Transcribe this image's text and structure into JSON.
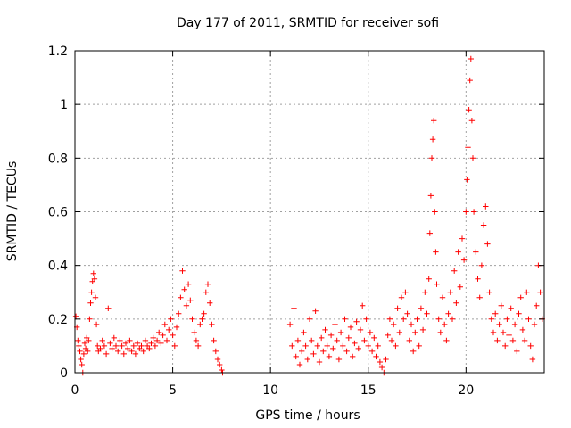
{
  "chart_data": {
    "type": "scatter",
    "title": "Day 177 of 2011, SRMTID for receiver sofi",
    "xlabel": "GPS time / hours",
    "ylabel": "SRMTID / TECUs",
    "xlim": [
      0,
      24
    ],
    "ylim": [
      0,
      1.2
    ],
    "xticks": [
      0,
      5,
      10,
      15,
      20
    ],
    "xtick_labels": [
      "0",
      "5",
      "10",
      "15",
      "20"
    ],
    "yticks": [
      0,
      0.2,
      0.4,
      0.6,
      0.8,
      1,
      1.2
    ],
    "ytick_labels": [
      "0",
      "0.2",
      "0.4",
      "0.6",
      "0.8",
      "1",
      "1.2"
    ],
    "grid": true,
    "marker": "+",
    "color": "#ff0000",
    "series": [
      {
        "name": "SRMTID",
        "points": [
          [
            0.05,
            0.21
          ],
          [
            0.1,
            0.17
          ],
          [
            0.15,
            0.12
          ],
          [
            0.2,
            0.1
          ],
          [
            0.25,
            0.08
          ],
          [
            0.3,
            0.05
          ],
          [
            0.35,
            0.03
          ],
          [
            0.4,
            0.0
          ],
          [
            0.45,
            0.07
          ],
          [
            0.5,
            0.11
          ],
          [
            0.55,
            0.09
          ],
          [
            0.6,
            0.13
          ],
          [
            0.65,
            0.08
          ],
          [
            0.7,
            0.12
          ],
          [
            0.75,
            0.2
          ],
          [
            0.8,
            0.26
          ],
          [
            0.85,
            0.3
          ],
          [
            0.9,
            0.34
          ],
          [
            0.95,
            0.37
          ],
          [
            1.0,
            0.35
          ],
          [
            1.05,
            0.28
          ],
          [
            1.1,
            0.18
          ],
          [
            1.15,
            0.1
          ],
          [
            1.2,
            0.08
          ],
          [
            1.3,
            0.09
          ],
          [
            1.4,
            0.12
          ],
          [
            1.5,
            0.1
          ],
          [
            1.6,
            0.07
          ],
          [
            1.7,
            0.24
          ],
          [
            1.8,
            0.11
          ],
          [
            1.9,
            0.09
          ],
          [
            2.0,
            0.13
          ],
          [
            2.1,
            0.1
          ],
          [
            2.2,
            0.08
          ],
          [
            2.3,
            0.12
          ],
          [
            2.4,
            0.1
          ],
          [
            2.5,
            0.07
          ],
          [
            2.6,
            0.11
          ],
          [
            2.7,
            0.09
          ],
          [
            2.8,
            0.12
          ],
          [
            2.9,
            0.08
          ],
          [
            3.0,
            0.1
          ],
          [
            3.1,
            0.07
          ],
          [
            3.2,
            0.11
          ],
          [
            3.3,
            0.09
          ],
          [
            3.4,
            0.1
          ],
          [
            3.5,
            0.08
          ],
          [
            3.6,
            0.12
          ],
          [
            3.7,
            0.1
          ],
          [
            3.8,
            0.09
          ],
          [
            3.9,
            0.11
          ],
          [
            4.0,
            0.13
          ],
          [
            4.1,
            0.1
          ],
          [
            4.2,
            0.12
          ],
          [
            4.3,
            0.15
          ],
          [
            4.4,
            0.11
          ],
          [
            4.5,
            0.14
          ],
          [
            4.6,
            0.18
          ],
          [
            4.7,
            0.12
          ],
          [
            4.8,
            0.16
          ],
          [
            4.9,
            0.2
          ],
          [
            5.0,
            0.14
          ],
          [
            5.1,
            0.1
          ],
          [
            5.2,
            0.17
          ],
          [
            5.3,
            0.22
          ],
          [
            5.4,
            0.28
          ],
          [
            5.5,
            0.38
          ],
          [
            5.6,
            0.31
          ],
          [
            5.7,
            0.25
          ],
          [
            5.8,
            0.33
          ],
          [
            5.9,
            0.27
          ],
          [
            6.0,
            0.2
          ],
          [
            6.1,
            0.15
          ],
          [
            6.2,
            0.12
          ],
          [
            6.3,
            0.1
          ],
          [
            6.4,
            0.18
          ],
          [
            6.5,
            0.2
          ],
          [
            6.6,
            0.22
          ],
          [
            6.7,
            0.3
          ],
          [
            6.8,
            0.33
          ],
          [
            6.9,
            0.26
          ],
          [
            7.0,
            0.18
          ],
          [
            7.1,
            0.12
          ],
          [
            7.2,
            0.08
          ],
          [
            7.3,
            0.05
          ],
          [
            7.4,
            0.03
          ],
          [
            7.5,
            0.01
          ],
          [
            7.55,
            0.0
          ],
          [
            11.0,
            0.18
          ],
          [
            11.1,
            0.1
          ],
          [
            11.2,
            0.24
          ],
          [
            11.3,
            0.06
          ],
          [
            11.4,
            0.12
          ],
          [
            11.5,
            0.03
          ],
          [
            11.6,
            0.08
          ],
          [
            11.7,
            0.15
          ],
          [
            11.8,
            0.1
          ],
          [
            11.9,
            0.05
          ],
          [
            12.0,
            0.2
          ],
          [
            12.1,
            0.12
          ],
          [
            12.2,
            0.07
          ],
          [
            12.3,
            0.23
          ],
          [
            12.4,
            0.1
          ],
          [
            12.5,
            0.04
          ],
          [
            12.6,
            0.13
          ],
          [
            12.7,
            0.08
          ],
          [
            12.8,
            0.16
          ],
          [
            12.9,
            0.1
          ],
          [
            13.0,
            0.06
          ],
          [
            13.1,
            0.14
          ],
          [
            13.2,
            0.09
          ],
          [
            13.3,
            0.18
          ],
          [
            13.4,
            0.12
          ],
          [
            13.5,
            0.05
          ],
          [
            13.6,
            0.15
          ],
          [
            13.7,
            0.1
          ],
          [
            13.8,
            0.2
          ],
          [
            13.9,
            0.08
          ],
          [
            14.0,
            0.13
          ],
          [
            14.1,
            0.17
          ],
          [
            14.2,
            0.06
          ],
          [
            14.3,
            0.11
          ],
          [
            14.4,
            0.19
          ],
          [
            14.5,
            0.09
          ],
          [
            14.6,
            0.16
          ],
          [
            14.7,
            0.25
          ],
          [
            14.8,
            0.12
          ],
          [
            14.9,
            0.2
          ],
          [
            15.0,
            0.1
          ],
          [
            15.1,
            0.15
          ],
          [
            15.2,
            0.08
          ],
          [
            15.3,
            0.13
          ],
          [
            15.4,
            0.06
          ],
          [
            15.5,
            0.1
          ],
          [
            15.6,
            0.04
          ],
          [
            15.7,
            0.02
          ],
          [
            15.8,
            0.0
          ],
          [
            15.9,
            0.05
          ],
          [
            16.0,
            0.14
          ],
          [
            16.1,
            0.2
          ],
          [
            16.2,
            0.12
          ],
          [
            16.3,
            0.18
          ],
          [
            16.4,
            0.1
          ],
          [
            16.5,
            0.24
          ],
          [
            16.6,
            0.15
          ],
          [
            16.7,
            0.28
          ],
          [
            16.8,
            0.2
          ],
          [
            16.9,
            0.3
          ],
          [
            17.0,
            0.22
          ],
          [
            17.1,
            0.12
          ],
          [
            17.2,
            0.18
          ],
          [
            17.3,
            0.08
          ],
          [
            17.4,
            0.15
          ],
          [
            17.5,
            0.2
          ],
          [
            17.6,
            0.1
          ],
          [
            17.7,
            0.24
          ],
          [
            17.8,
            0.16
          ],
          [
            17.9,
            0.3
          ],
          [
            18.0,
            0.22
          ],
          [
            18.1,
            0.35
          ],
          [
            18.15,
            0.52
          ],
          [
            18.2,
            0.66
          ],
          [
            18.25,
            0.8
          ],
          [
            18.3,
            0.87
          ],
          [
            18.35,
            0.94
          ],
          [
            18.4,
            0.6
          ],
          [
            18.45,
            0.45
          ],
          [
            18.5,
            0.33
          ],
          [
            18.6,
            0.2
          ],
          [
            18.7,
            0.15
          ],
          [
            18.8,
            0.28
          ],
          [
            18.9,
            0.18
          ],
          [
            19.0,
            0.12
          ],
          [
            19.1,
            0.22
          ],
          [
            19.2,
            0.3
          ],
          [
            19.3,
            0.2
          ],
          [
            19.4,
            0.38
          ],
          [
            19.5,
            0.26
          ],
          [
            19.6,
            0.45
          ],
          [
            19.7,
            0.32
          ],
          [
            19.8,
            0.5
          ],
          [
            19.9,
            0.42
          ],
          [
            20.0,
            0.6
          ],
          [
            20.05,
            0.72
          ],
          [
            20.1,
            0.84
          ],
          [
            20.15,
            0.98
          ],
          [
            20.2,
            1.09
          ],
          [
            20.25,
            1.17
          ],
          [
            20.3,
            0.94
          ],
          [
            20.35,
            0.8
          ],
          [
            20.4,
            0.6
          ],
          [
            20.5,
            0.45
          ],
          [
            20.6,
            0.35
          ],
          [
            20.7,
            0.28
          ],
          [
            20.8,
            0.4
          ],
          [
            20.9,
            0.55
          ],
          [
            21.0,
            0.62
          ],
          [
            21.1,
            0.48
          ],
          [
            21.2,
            0.3
          ],
          [
            21.3,
            0.2
          ],
          [
            21.4,
            0.15
          ],
          [
            21.5,
            0.22
          ],
          [
            21.6,
            0.12
          ],
          [
            21.7,
            0.18
          ],
          [
            21.8,
            0.25
          ],
          [
            21.9,
            0.15
          ],
          [
            22.0,
            0.1
          ],
          [
            22.1,
            0.2
          ],
          [
            22.2,
            0.14
          ],
          [
            22.3,
            0.24
          ],
          [
            22.4,
            0.12
          ],
          [
            22.5,
            0.18
          ],
          [
            22.6,
            0.08
          ],
          [
            22.7,
            0.22
          ],
          [
            22.8,
            0.28
          ],
          [
            22.9,
            0.16
          ],
          [
            23.0,
            0.12
          ],
          [
            23.1,
            0.3
          ],
          [
            23.2,
            0.2
          ],
          [
            23.3,
            0.1
          ],
          [
            23.4,
            0.05
          ],
          [
            23.5,
            0.18
          ],
          [
            23.6,
            0.25
          ],
          [
            23.7,
            0.4
          ],
          [
            23.8,
            0.3
          ],
          [
            23.9,
            0.2
          ]
        ]
      }
    ]
  }
}
